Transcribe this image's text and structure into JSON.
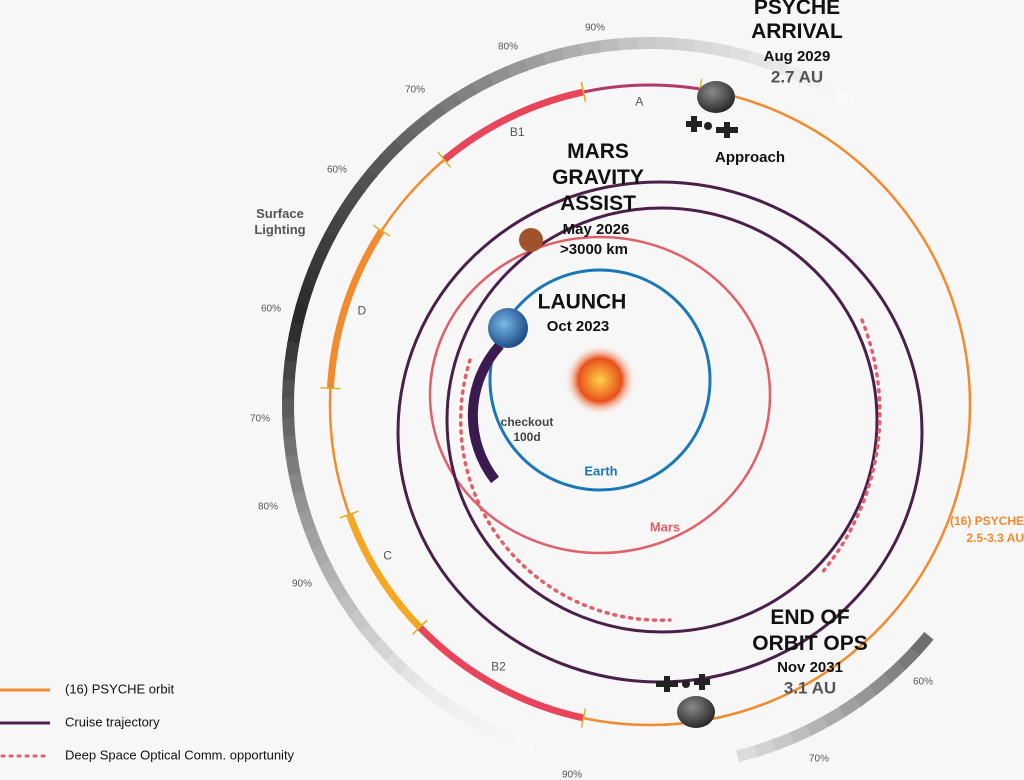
{
  "arrival": {
    "title": [
      "PSYCHE",
      "ARRIVAL"
    ],
    "date": "Aug 2029",
    "distance": "2.7 AU"
  },
  "approach": "Approach",
  "mars_assist": {
    "title": [
      "MARS",
      "GRAVITY",
      "ASSIST"
    ],
    "date": "May 2026",
    "distance": ">3000 km"
  },
  "launch": {
    "title": "LAUNCH",
    "date": "Oct 2023"
  },
  "checkout": [
    "checkout",
    "100d"
  ],
  "earth": "Earth",
  "mars": "Mars",
  "psyche_orbit_label": [
    "(16) PSYCHE",
    "2.5-3.3 AU"
  ],
  "end_ops": {
    "title": [
      "END OF",
      "ORBIT OPS"
    ],
    "date": "Nov 2031",
    "distance": "3.1 AU"
  },
  "segments": [
    "A",
    "B1",
    "D",
    "C",
    "B2"
  ],
  "surface_lighting": [
    "Surface",
    "Lighting"
  ],
  "lighting_percents": [
    "90%",
    "80%",
    "70%",
    "60%",
    "60%",
    "70%",
    "80%",
    "90%",
    "60%",
    "70%",
    "90%"
  ],
  "legend": [
    "(16) PSYCHE orbit",
    "Cruise trajectory",
    "Deep Space Optical Comm. opportunity"
  ]
}
